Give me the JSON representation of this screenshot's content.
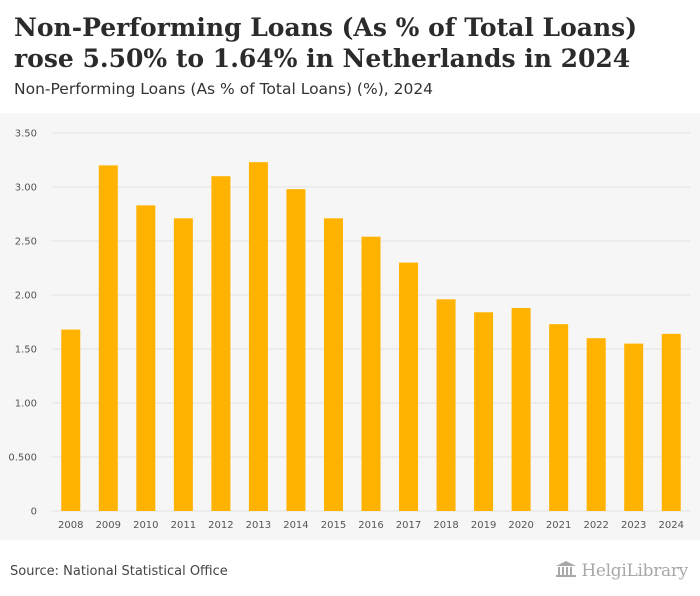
{
  "header": {
    "title": "Non-Performing Loans (As % of Total Loans) rose 5.50% to 1.64% in Netherlands in 2024",
    "subtitle": "Non-Performing Loans (As % of Total Loans) (%), 2024"
  },
  "footer": {
    "source": "Source: National Statistical Office",
    "logo_text": "HelgiLibrary"
  },
  "colors": {
    "bar": "#FFB300",
    "panel_background": "#f6f6f6",
    "gridline": "#e2e2e2"
  },
  "chart_data": {
    "type": "bar",
    "title": "Non-Performing Loans (As % of Total Loans) rose 5.50% to 1.64% in Netherlands in 2024",
    "subtitle": "Non-Performing Loans (As % of Total Loans) (%), 2024",
    "categories": [
      "2008",
      "2009",
      "2010",
      "2011",
      "2012",
      "2013",
      "2014",
      "2015",
      "2016",
      "2017",
      "2018",
      "2019",
      "2020",
      "2021",
      "2022",
      "2023",
      "2024"
    ],
    "values": [
      1.68,
      3.2,
      2.83,
      2.71,
      3.1,
      3.23,
      2.98,
      2.71,
      2.54,
      2.3,
      1.96,
      1.84,
      1.88,
      1.73,
      1.6,
      1.55,
      1.64
    ],
    "yticks": [
      0,
      0.5,
      1.0,
      1.5,
      2.0,
      2.5,
      3.0,
      3.5
    ],
    "ytick_labels": [
      "0",
      "0.500",
      "1.00",
      "1.50",
      "2.00",
      "2.50",
      "3.00",
      "3.50"
    ],
    "ylim": [
      0,
      3.5
    ],
    "xlabel": "",
    "ylabel": "",
    "grid": true,
    "legend": "none"
  }
}
